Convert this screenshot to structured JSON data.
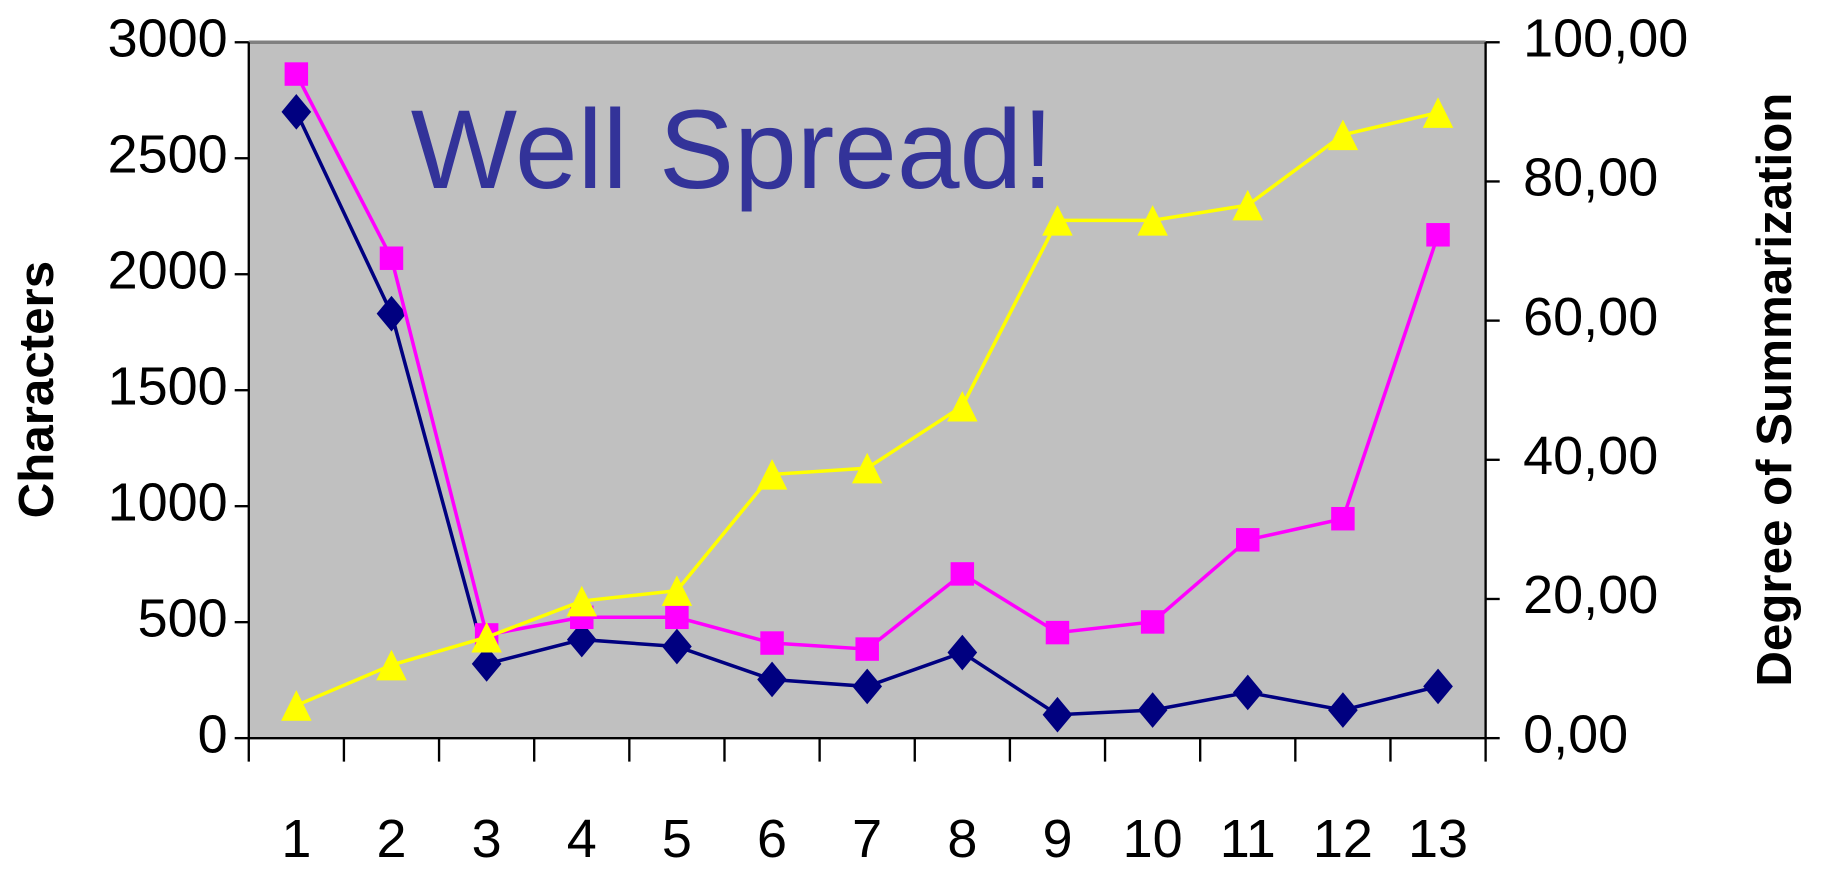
{
  "chart_data": {
    "type": "line",
    "annotation": "Well Spread!",
    "ylabel": "Characters",
    "y2label": "Degree of Summarization",
    "categories": [
      "1",
      "2",
      "3",
      "4",
      "5",
      "6",
      "7",
      "8",
      "9",
      "10",
      "11",
      "12",
      "13"
    ],
    "ylim": [
      0,
      3000
    ],
    "yticks": [
      0,
      500,
      1000,
      1500,
      2000,
      2500,
      3000
    ],
    "y2lim": [
      0,
      100
    ],
    "y2ticks": [
      {
        "value": 0,
        "label": "0,00"
      },
      {
        "value": 20,
        "label": "20,00"
      },
      {
        "value": 40,
        "label": "40,00"
      },
      {
        "value": 60,
        "label": "60,00"
      },
      {
        "value": 80,
        "label": "80,00"
      },
      {
        "value": 100,
        "label": "100,00"
      }
    ],
    "background": "#c0c0c0",
    "series": [
      {
        "color": "#000080",
        "marker": "diamond",
        "axis": "y",
        "values": [
          2700,
          1830,
          320,
          425,
          395,
          253,
          223,
          369,
          101,
          121,
          197,
          121,
          223
        ]
      },
      {
        "color": "#ff00ff",
        "marker": "square",
        "axis": "y",
        "values": [
          2863,
          2069,
          445,
          521,
          521,
          410,
          384,
          708,
          455,
          501,
          855,
          946,
          2170
        ]
      },
      {
        "color": "#ffff00",
        "marker": "triangle",
        "axis": "y2",
        "values": [
          4.7,
          10.5,
          14.5,
          19.7,
          21.2,
          37.9,
          38.8,
          47.7,
          74.4,
          74.4,
          76.6,
          86.7,
          89.9
        ]
      }
    ]
  }
}
